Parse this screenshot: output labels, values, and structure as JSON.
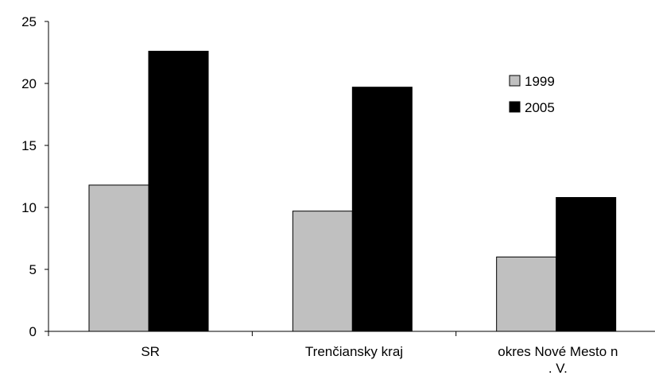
{
  "chart_data": {
    "type": "bar",
    "categories": [
      "SR",
      "Trenčiansky kraj",
      "okres Nové Mesto n. V."
    ],
    "series": [
      {
        "name": "1999",
        "values": [
          11.8,
          9.7,
          6.0
        ]
      },
      {
        "name": "2005",
        "values": [
          22.6,
          19.7,
          10.8
        ]
      }
    ],
    "title": "",
    "xlabel": "",
    "ylabel": "",
    "ylim": [
      0,
      25
    ],
    "yticks": [
      0,
      5,
      10,
      15,
      20,
      25
    ],
    "grid": false,
    "legend": "top-right",
    "colors": {
      "1999": "#c0c0c0",
      "2005": "#000000"
    }
  }
}
